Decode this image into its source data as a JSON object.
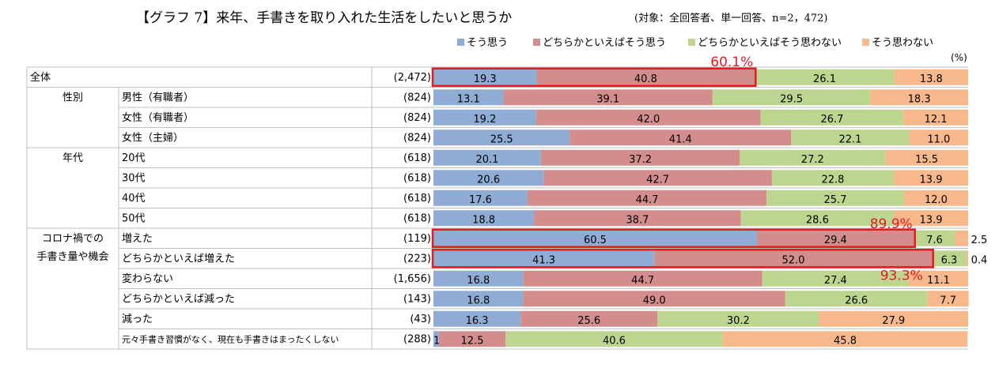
{
  "chart_data": {
    "type": "bar",
    "stacked": true,
    "orientation": "horizontal",
    "title": "【グラフ 7】来年、手書きを取り入れた生活をしたいと思うか",
    "subtitle": "(対象：全回答者、単一回答、n=2，472)",
    "unit": "(%)",
    "series": [
      {
        "name": "そう思う",
        "color": "#8fadd4"
      },
      {
        "name": "どちらかといえばそう思う",
        "color": "#d48d8d"
      },
      {
        "name": "どちらかといえばそう思わない",
        "color": "#bcd690"
      },
      {
        "name": "そう思わない",
        "color": "#f7b88c"
      }
    ],
    "groups": [
      "全体",
      "性別",
      "年代",
      "コロナ禍での",
      "手書き量や機会"
    ],
    "rows": [
      {
        "label": "全体",
        "n": "(2,472)",
        "values": [
          19.3,
          40.8,
          26.1,
          13.8
        ]
      },
      {
        "label": "男性（有職者）",
        "n": "(824)",
        "values": [
          13.1,
          39.1,
          29.5,
          18.3
        ]
      },
      {
        "label": "女性（有職者）",
        "n": "(824)",
        "values": [
          19.2,
          42.0,
          26.7,
          12.1
        ]
      },
      {
        "label": "女性（主婦）",
        "n": "(824)",
        "values": [
          25.5,
          41.4,
          22.1,
          11.0
        ]
      },
      {
        "label": "20代",
        "n": "(618)",
        "values": [
          20.1,
          37.2,
          27.2,
          15.5
        ]
      },
      {
        "label": "30代",
        "n": "(618)",
        "values": [
          20.6,
          42.7,
          22.8,
          13.9
        ]
      },
      {
        "label": "40代",
        "n": "(618)",
        "values": [
          17.6,
          44.7,
          25.7,
          12.0
        ]
      },
      {
        "label": "50代",
        "n": "(618)",
        "values": [
          18.8,
          38.7,
          28.6,
          13.9
        ]
      },
      {
        "label": "増えた",
        "n": "(119)",
        "values": [
          60.5,
          29.4,
          7.6,
          2.5
        ]
      },
      {
        "label": "どちらかといえば増えた",
        "n": "(223)",
        "values": [
          41.3,
          52.0,
          6.3,
          0.4
        ]
      },
      {
        "label": "変わらない",
        "n": "(1,656)",
        "values": [
          16.8,
          44.7,
          27.4,
          11.1
        ]
      },
      {
        "label": "どちらかといえば減った",
        "n": "(143)",
        "values": [
          16.8,
          49.0,
          26.6,
          7.7
        ]
      },
      {
        "label": "減った",
        "n": "(43)",
        "values": [
          16.3,
          25.6,
          30.2,
          27.9
        ]
      },
      {
        "label": "元々手書き習慣がなく、現在も手書きはまったくしない",
        "n": "(288)",
        "values": [
          1.0,
          12.5,
          40.6,
          45.8
        ]
      }
    ],
    "annotations": [
      {
        "row": 0,
        "segments": 2,
        "text": "60.1%"
      },
      {
        "row": 8,
        "segments": 2,
        "text": "89.9%"
      },
      {
        "row": 9,
        "segments": 2,
        "text": "93.3%"
      }
    ],
    "xlim": [
      0,
      100
    ]
  }
}
